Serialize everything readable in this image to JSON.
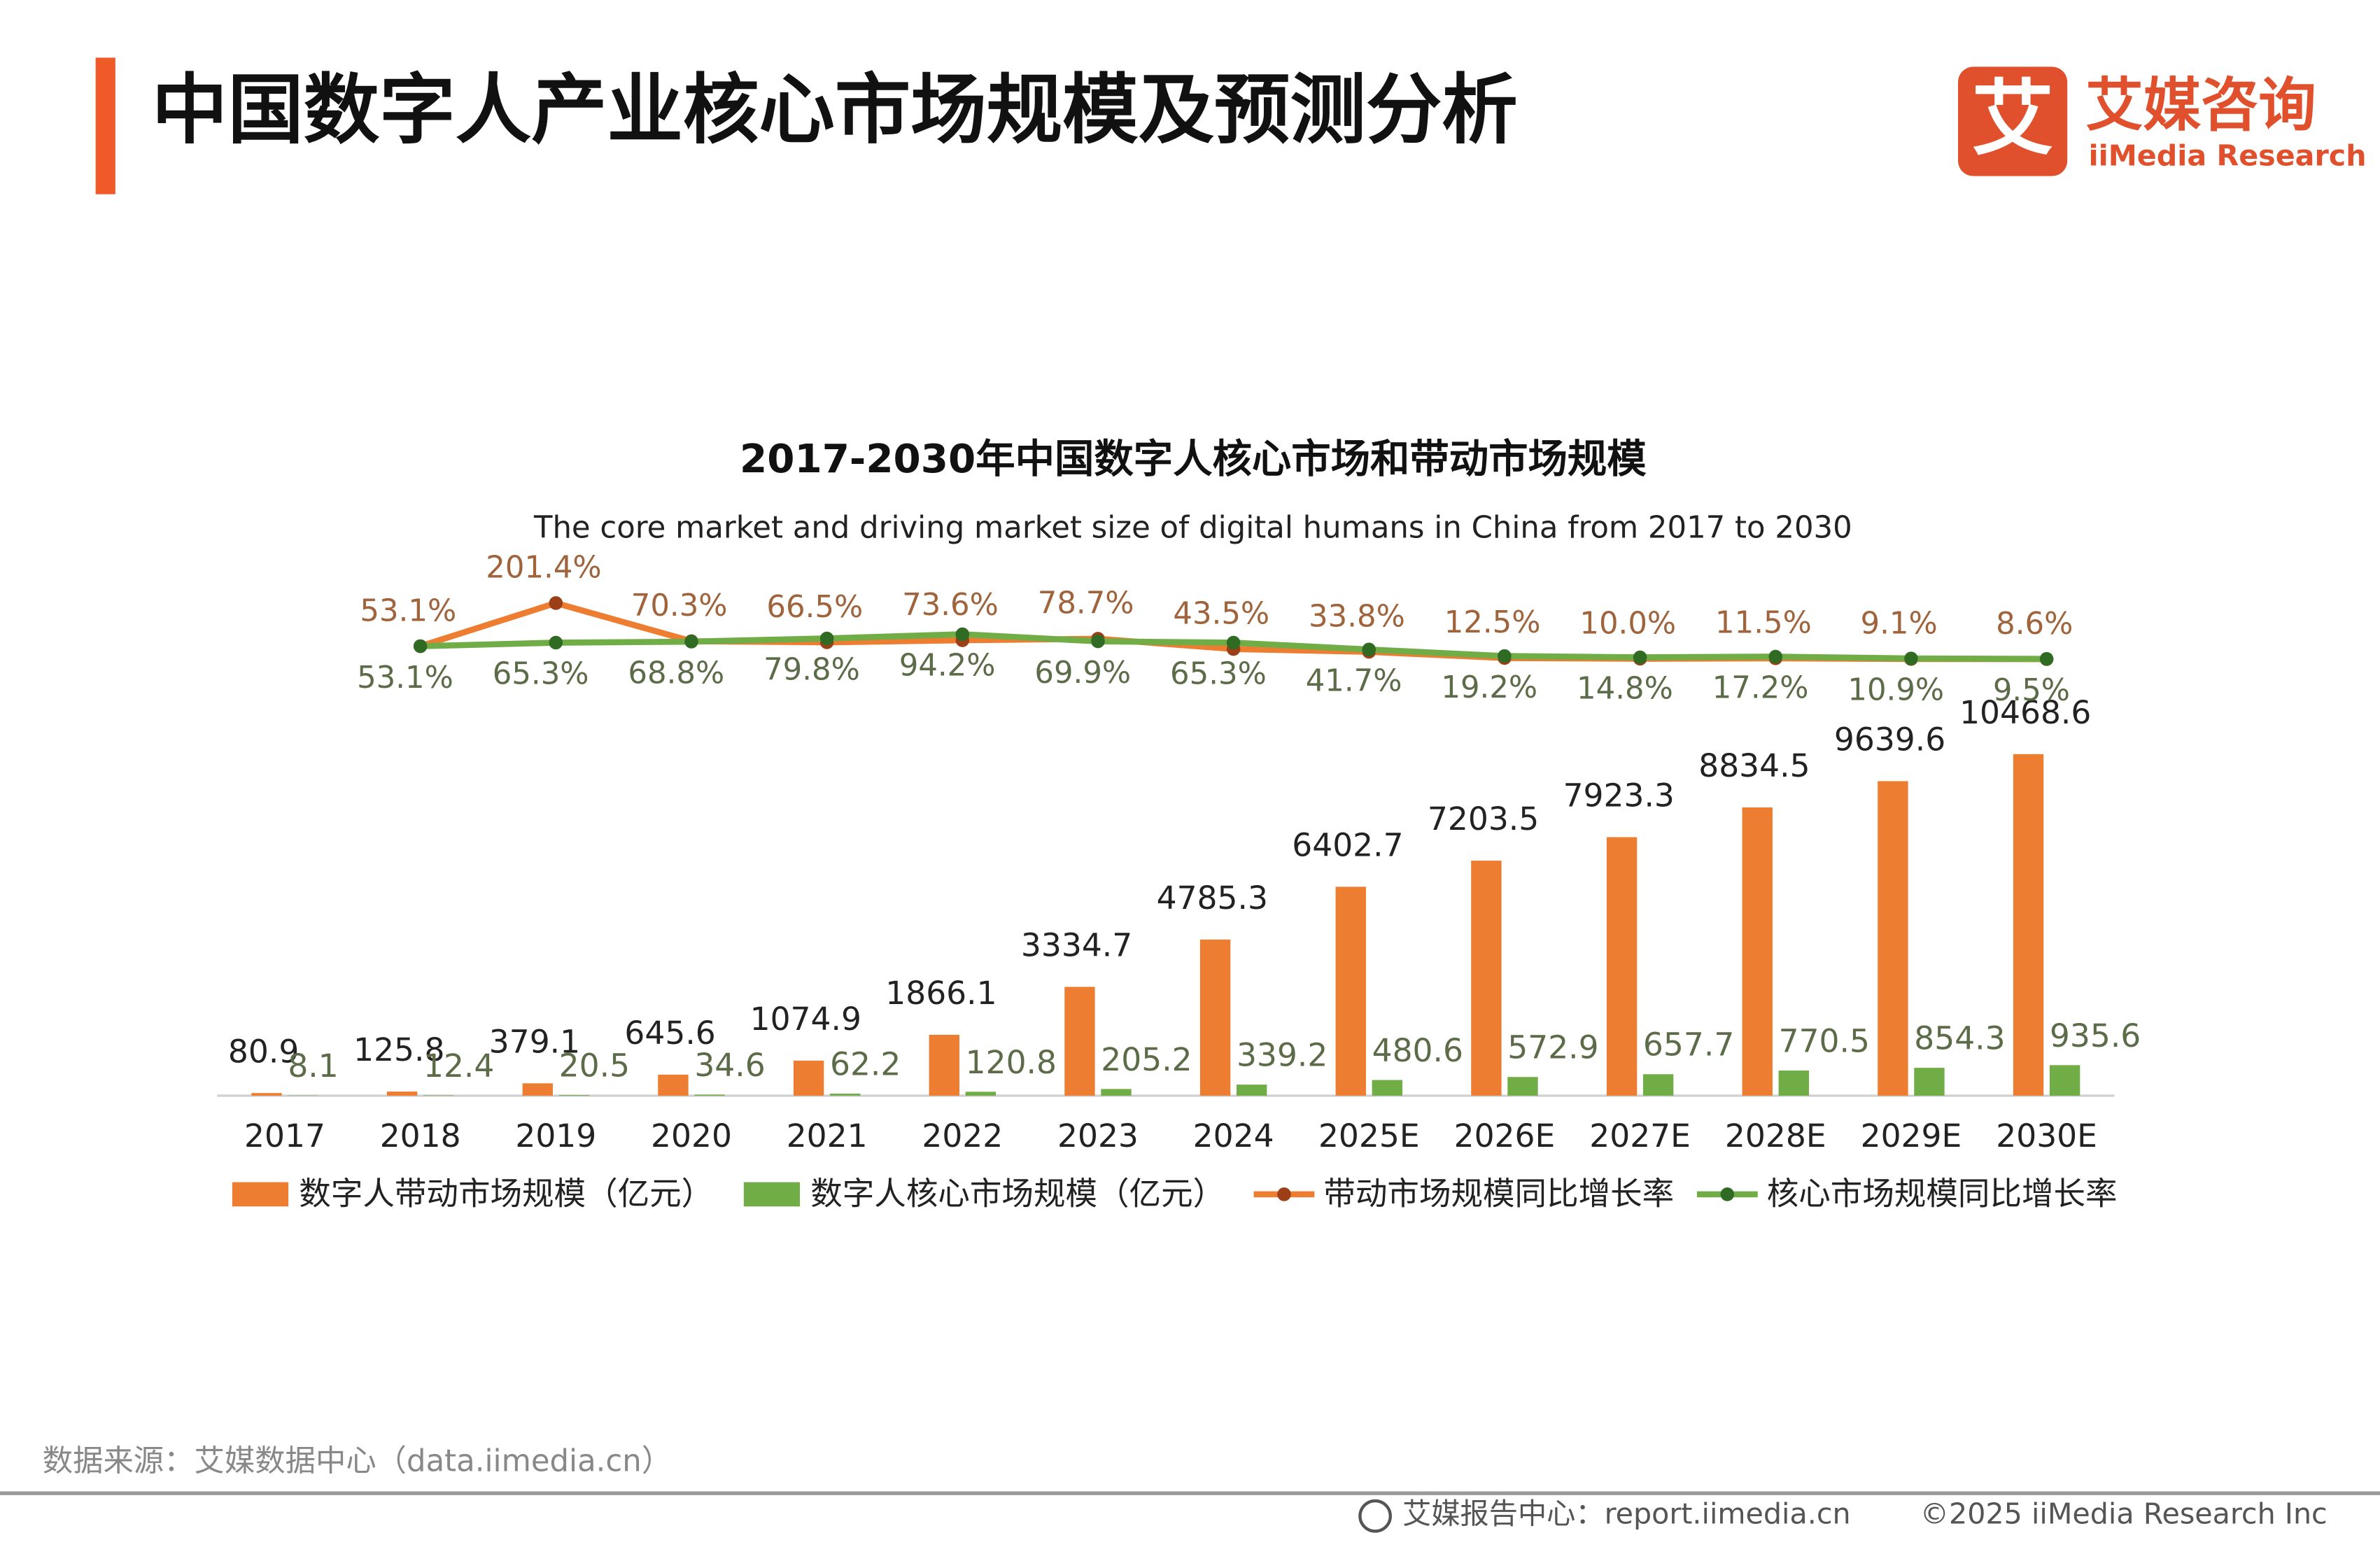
{
  "header": {
    "title": "中国数字人产业核心市场规模及预测分析",
    "logo_mark": "艾",
    "logo_cn": "艾媒咨询",
    "logo_en": "iiMedia Research"
  },
  "chart_data": {
    "type": "bar",
    "title": "2017-2030年中国数字人核心市场和带动市场规模",
    "subtitle": "The core market and driving market size of digital humans in China from 2017 to 2030",
    "categories": [
      "2017",
      "2018",
      "2019",
      "2020",
      "2021",
      "2022",
      "2023",
      "2024",
      "2025E",
      "2026E",
      "2027E",
      "2028E",
      "2029E",
      "2030E"
    ],
    "ylim": [
      0,
      12000
    ],
    "y2lim": [
      0,
      240
    ],
    "series": [
      {
        "name": "数字人带动市场规模（亿元）",
        "type": "bar",
        "color": "#ed7d31",
        "values": [
          80.9,
          125.8,
          379.1,
          645.6,
          1074.9,
          1866.1,
          3334.7,
          4785.3,
          6402.7,
          7203.5,
          7923.3,
          8834.5,
          9639.6,
          10468.6
        ]
      },
      {
        "name": "数字人核心市场规模（亿元）",
        "type": "bar",
        "color": "#70ad47",
        "values": [
          8.1,
          12.4,
          20.5,
          34.6,
          62.2,
          120.8,
          205.2,
          339.2,
          480.6,
          572.9,
          657.7,
          770.5,
          854.3,
          935.6
        ]
      },
      {
        "name": "带动市场规模同比增长率",
        "type": "line",
        "axis": "y2",
        "color": "#ed7d31",
        "values": [
          null,
          53.1,
          201.4,
          70.3,
          66.5,
          73.6,
          78.7,
          43.5,
          33.8,
          12.5,
          10.0,
          11.5,
          9.1,
          8.6
        ],
        "value_labels": [
          null,
          "53.1%",
          "201.4%",
          "70.3%",
          "66.5%",
          "73.6%",
          "78.7%",
          "43.5%",
          "33.8%",
          "12.5%",
          "10.0%",
          "11.5%",
          "9.1%",
          "8.6%"
        ]
      },
      {
        "name": "核心市场规模同比增长率",
        "type": "line",
        "axis": "y2",
        "color": "#70ad47",
        "values": [
          null,
          53.1,
          65.3,
          68.8,
          79.8,
          94.2,
          69.9,
          65.3,
          41.7,
          19.2,
          14.8,
          17.2,
          10.9,
          9.5
        ],
        "value_labels": [
          null,
          "53.1%",
          "65.3%",
          "68.8%",
          "79.8%",
          "94.2%",
          "69.9%",
          "65.3%",
          "41.7%",
          "19.2%",
          "14.8%",
          "17.2%",
          "10.9%",
          "9.5%"
        ]
      }
    ]
  },
  "footer": {
    "source": "数据来源：艾媒数据中心（data.iimedia.cn）",
    "report": "艾媒报告中心：report.iimedia.cn",
    "copyright": "©2025  iiMedia Research  Inc"
  }
}
